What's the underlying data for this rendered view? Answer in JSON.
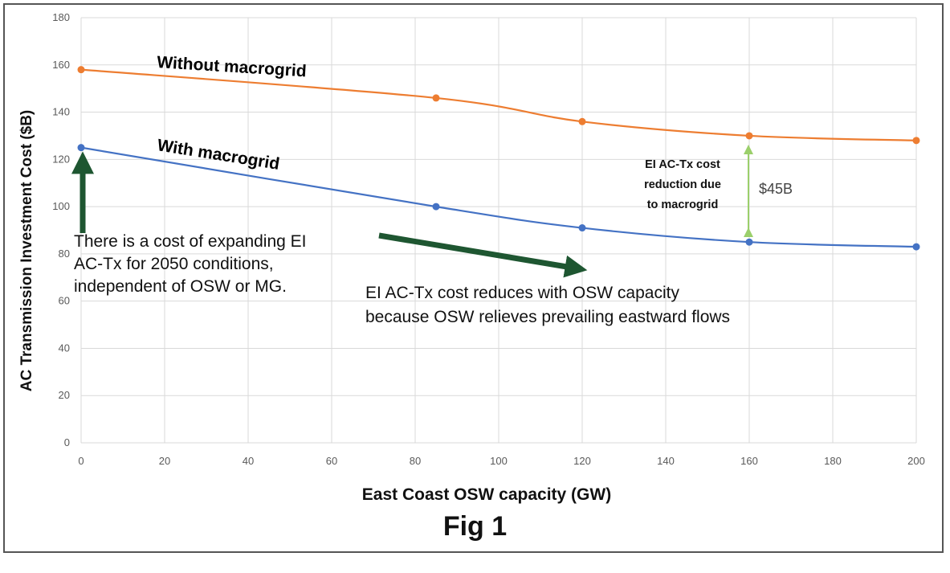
{
  "chart_data": {
    "type": "line",
    "x": [
      0,
      85,
      120,
      160,
      200
    ],
    "series": [
      {
        "name": "Without macrogrid",
        "values": [
          158,
          146,
          136,
          130,
          128
        ],
        "color": "#ED7D31"
      },
      {
        "name": "With macrogrid",
        "values": [
          125,
          100,
          91,
          85,
          83
        ],
        "color": "#4472C4"
      }
    ],
    "xlabel": "East Coast OSW capacity (GW)",
    "ylabel": "AC Transmission Investment Cost ($B)",
    "xlim": [
      0,
      200
    ],
    "ylim": [
      0,
      180
    ],
    "x_ticks": [
      0,
      20,
      40,
      60,
      80,
      100,
      120,
      140,
      160,
      180,
      200
    ],
    "y_ticks": [
      0,
      20,
      40,
      60,
      80,
      100,
      120,
      140,
      160,
      180
    ],
    "grid": true,
    "legend": "none",
    "annotations": {
      "left_note": "There is a cost of expanding EI AC-Tx for 2050 conditions, independent of OSW or MG.",
      "right_note_line1": "EI AC-Tx cost reduces with OSW capacity",
      "right_note_line2": "because OSW relieves prevailing eastward flows",
      "diff_note_line1": "EI AC-Tx cost",
      "diff_note_line2": "reduction due",
      "diff_note_line3": "to macrogrid",
      "diff_amount": "$45B",
      "arrow_color": "#1E5631",
      "diff_arrow_color": "#9BCF6B"
    }
  },
  "caption": "Fig 1"
}
